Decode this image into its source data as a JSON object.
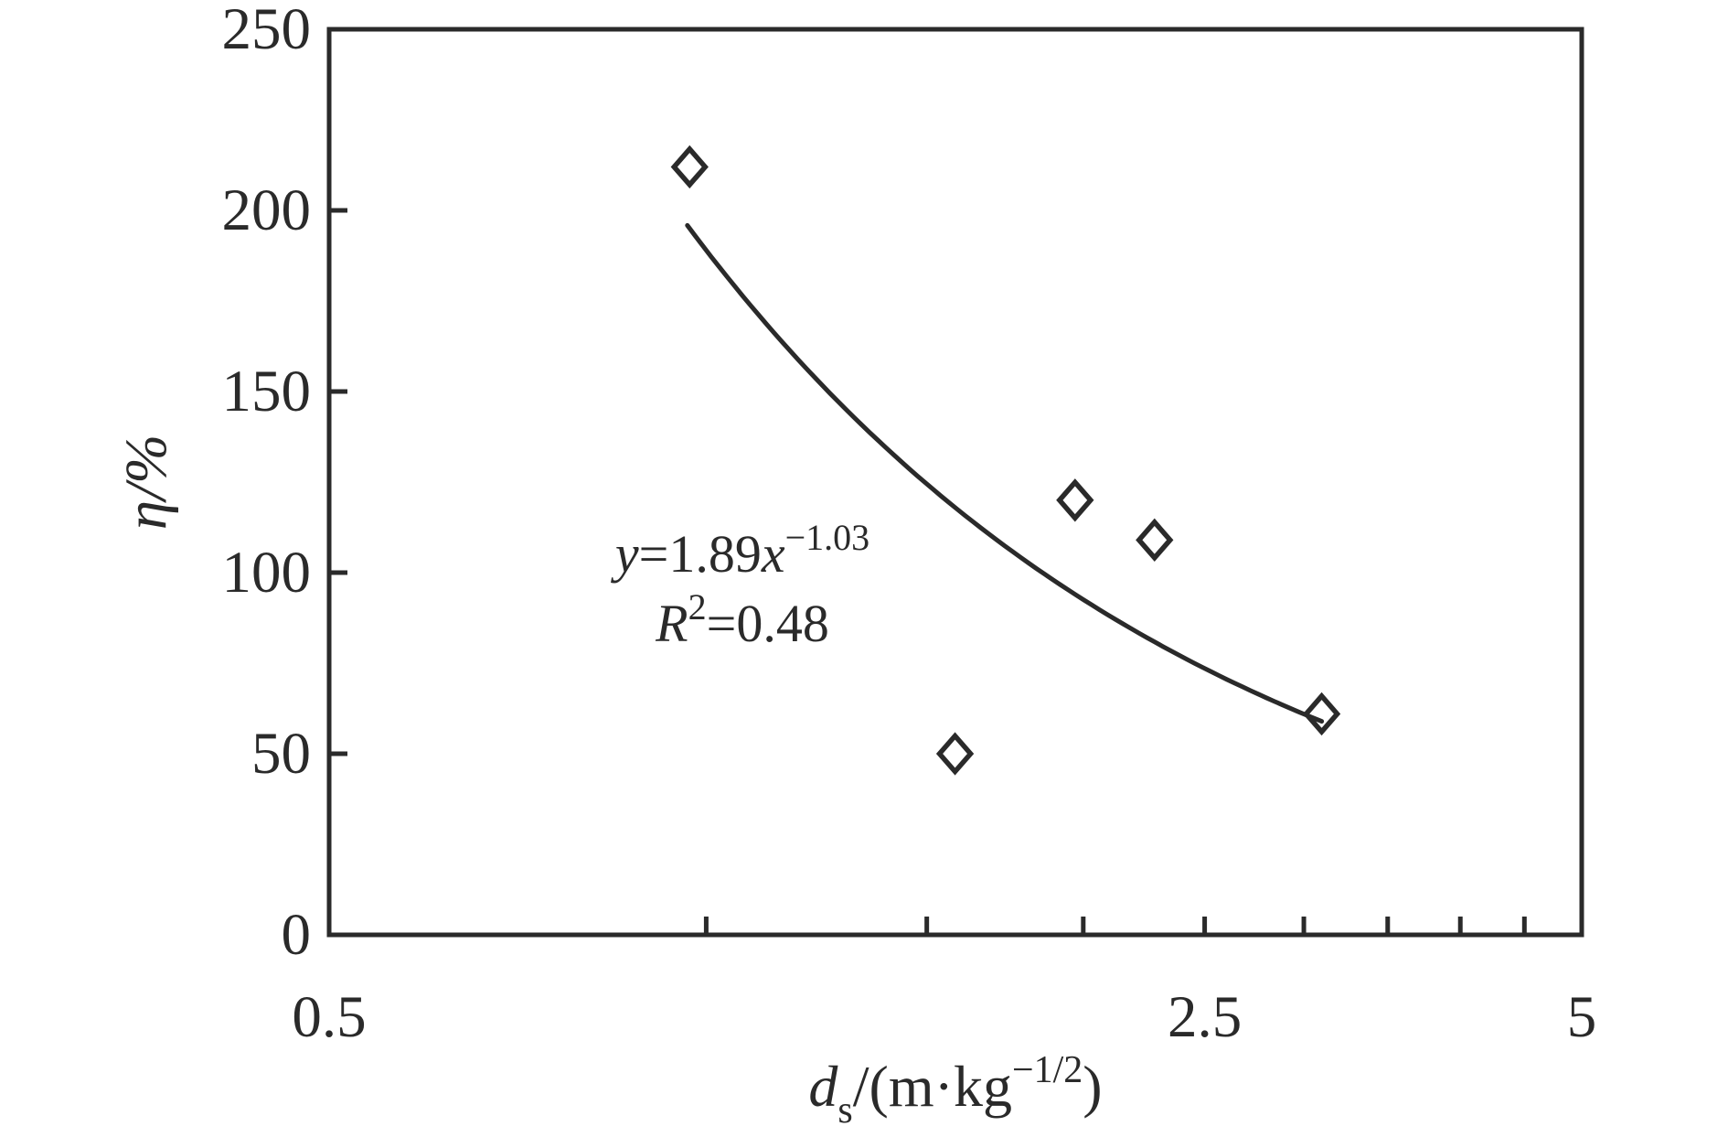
{
  "chart_data": {
    "type": "scatter",
    "x_scale": "log",
    "xlim": [
      0.5,
      5
    ],
    "ylim": [
      0,
      250
    ],
    "ylabel": "η/%",
    "xlabel_parts": {
      "var": "d",
      "sub": "s",
      "mid": "/(m·kg",
      "sup": "−1/2",
      "end": ")"
    },
    "x_tick_marks": [
      1,
      1.5,
      2,
      2.5,
      3,
      3.5,
      4,
      4.5
    ],
    "x_tick_labels": [
      {
        "value": 0.5,
        "label": "0.5"
      },
      {
        "value": 2.5,
        "label": "2.5"
      },
      {
        "value": 5,
        "label": "5"
      }
    ],
    "y_tick_marks": [
      50,
      100,
      150,
      200
    ],
    "y_tick_labels": [
      {
        "value": 0,
        "label": "0"
      },
      {
        "value": 50,
        "label": "50"
      },
      {
        "value": 100,
        "label": "100"
      },
      {
        "value": 150,
        "label": "150"
      },
      {
        "value": 200,
        "label": "200"
      },
      {
        "value": 250,
        "label": "250"
      }
    ],
    "points": [
      {
        "x": 0.97,
        "y": 212
      },
      {
        "x": 1.58,
        "y": 50
      },
      {
        "x": 1.97,
        "y": 120
      },
      {
        "x": 2.28,
        "y": 109
      },
      {
        "x": 3.1,
        "y": 61
      }
    ],
    "marker": "open-diamond",
    "fit_curve": {
      "coefficient_pct": 189,
      "exponent": -1.03,
      "x_start": 0.966,
      "x_end": 3.1
    },
    "annotation": {
      "eq_base": "y",
      "eq_mid": "=1.89",
      "eq_var": "x",
      "eq_sup": "−1.03",
      "r2_base": "R",
      "r2_sup": "2",
      "r2_rest": "=0.48"
    },
    "colors": {
      "ink": "#2a2a2a",
      "background": "#ffffff"
    }
  }
}
